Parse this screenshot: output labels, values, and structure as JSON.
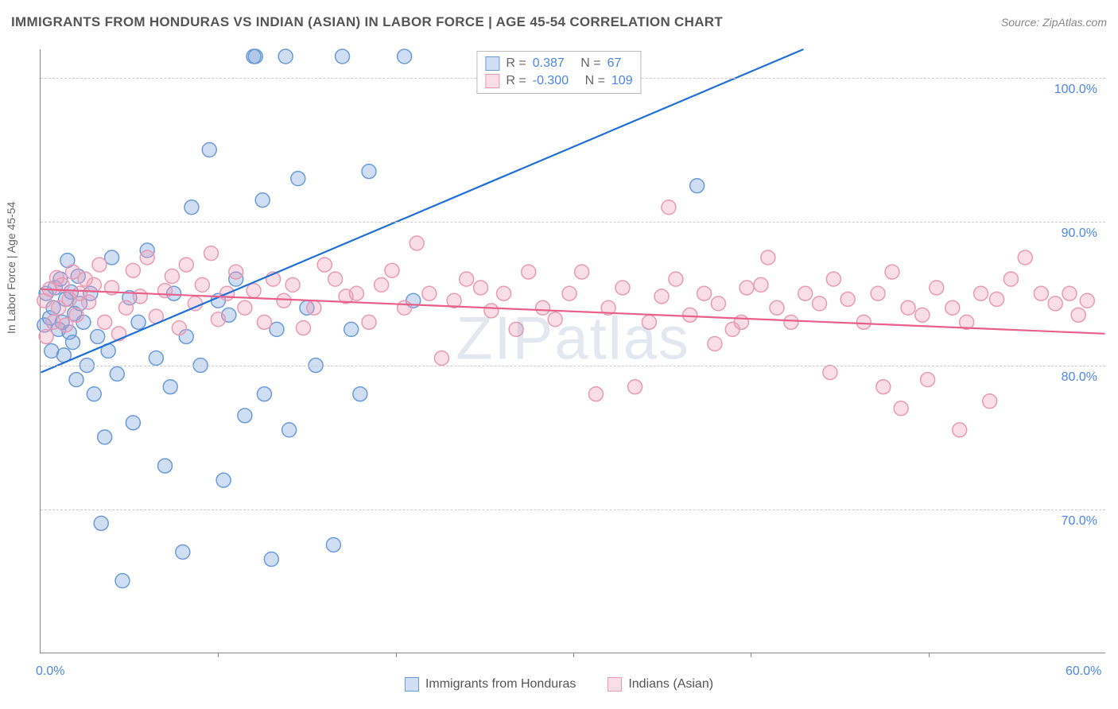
{
  "title": "IMMIGRANTS FROM HONDURAS VS INDIAN (ASIAN) IN LABOR FORCE | AGE 45-54 CORRELATION CHART",
  "source": "Source: ZipAtlas.com",
  "y_axis_label": "In Labor Force | Age 45-54",
  "watermark": "ZIPatlas",
  "chart": {
    "type": "scatter",
    "background_color": "#ffffff",
    "grid_color": "#cccccc",
    "axis_color": "#888888",
    "tick_label_color": "#4a86e8",
    "tick_fontsize": 16,
    "title_color": "#555555",
    "title_fontsize": 17,
    "xlim": [
      0,
      60
    ],
    "ylim": [
      60,
      102
    ],
    "y_ticks": [
      70,
      80,
      90,
      100
    ],
    "y_tick_labels": [
      "70.0%",
      "80.0%",
      "90.0%",
      "100.0%"
    ],
    "x_ticks": [
      0,
      10,
      20,
      30,
      40,
      50,
      60
    ],
    "x_tick_labels": [
      "0.0%",
      "",
      "",
      "",
      "",
      "",
      "60.0%"
    ],
    "marker_radius": 9,
    "marker_stroke_width": 1.5,
    "line_width": 2.2,
    "series": [
      {
        "name": "Immigrants from Honduras",
        "fill_color": "rgba(120,160,220,0.35)",
        "stroke_color": "#6a9bd8",
        "line_color": "#1f6fd6",
        "stats": {
          "R": "0.387",
          "N": "67"
        },
        "trend_line": {
          "x1": 0,
          "y1": 79.5,
          "x2": 43,
          "y2": 102
        },
        "points": [
          [
            0.2,
            82.8
          ],
          [
            0.3,
            85.0
          ],
          [
            0.5,
            83.3
          ],
          [
            0.6,
            81.0
          ],
          [
            0.7,
            84.0
          ],
          [
            0.8,
            85.4
          ],
          [
            1.0,
            82.5
          ],
          [
            1.1,
            86.0
          ],
          [
            1.2,
            83.0
          ],
          [
            1.3,
            80.7
          ],
          [
            1.4,
            84.6
          ],
          [
            1.5,
            87.3
          ],
          [
            1.6,
            82.3
          ],
          [
            1.7,
            85.1
          ],
          [
            1.8,
            81.6
          ],
          [
            1.9,
            83.6
          ],
          [
            2.0,
            79.0
          ],
          [
            2.1,
            86.2
          ],
          [
            2.2,
            84.3
          ],
          [
            2.4,
            83.0
          ],
          [
            2.6,
            80.0
          ],
          [
            2.8,
            85.0
          ],
          [
            3.0,
            78.0
          ],
          [
            3.2,
            82.0
          ],
          [
            3.4,
            69.0
          ],
          [
            3.6,
            75.0
          ],
          [
            3.8,
            81.0
          ],
          [
            4.0,
            87.5
          ],
          [
            4.3,
            79.4
          ],
          [
            4.6,
            65.0
          ],
          [
            5.0,
            84.7
          ],
          [
            5.2,
            76.0
          ],
          [
            5.5,
            83.0
          ],
          [
            6.0,
            88.0
          ],
          [
            6.5,
            80.5
          ],
          [
            7.0,
            73.0
          ],
          [
            7.3,
            78.5
          ],
          [
            7.5,
            85.0
          ],
          [
            8.0,
            67.0
          ],
          [
            8.2,
            82.0
          ],
          [
            8.5,
            91.0
          ],
          [
            9.0,
            80.0
          ],
          [
            9.5,
            95.0
          ],
          [
            10.0,
            84.5
          ],
          [
            10.3,
            72.0
          ],
          [
            10.6,
            83.5
          ],
          [
            11.0,
            86.0
          ],
          [
            11.5,
            76.5
          ],
          [
            12.0,
            101.5
          ],
          [
            12.1,
            101.5
          ],
          [
            12.5,
            91.5
          ],
          [
            12.6,
            78.0
          ],
          [
            13.0,
            66.5
          ],
          [
            13.3,
            82.5
          ],
          [
            13.8,
            101.5
          ],
          [
            14.0,
            75.5
          ],
          [
            14.5,
            93.0
          ],
          [
            15.0,
            84.0
          ],
          [
            15.5,
            80.0
          ],
          [
            16.5,
            67.5
          ],
          [
            17.0,
            101.5
          ],
          [
            17.5,
            82.5
          ],
          [
            18.0,
            78.0
          ],
          [
            18.5,
            93.5
          ],
          [
            20.5,
            101.5
          ],
          [
            21.0,
            84.5
          ],
          [
            37.0,
            92.5
          ]
        ]
      },
      {
        "name": "Indians (Asian)",
        "fill_color": "rgba(240,160,185,0.35)",
        "stroke_color": "#e89ab2",
        "line_color": "#e85f8a",
        "stats": {
          "R": "-0.300",
          "N": "109"
        },
        "trend_line": {
          "x1": 0,
          "y1": 85.3,
          "x2": 60,
          "y2": 82.2
        },
        "points": [
          [
            0.2,
            84.5
          ],
          [
            0.3,
            82.0
          ],
          [
            0.5,
            85.3
          ],
          [
            0.7,
            83.0
          ],
          [
            0.9,
            86.1
          ],
          [
            1.0,
            84.0
          ],
          [
            1.2,
            85.6
          ],
          [
            1.4,
            82.8
          ],
          [
            1.6,
            84.6
          ],
          [
            1.8,
            86.5
          ],
          [
            2.0,
            83.5
          ],
          [
            2.2,
            85.0
          ],
          [
            2.5,
            86.0
          ],
          [
            2.7,
            84.4
          ],
          [
            3.0,
            85.6
          ],
          [
            3.3,
            87.0
          ],
          [
            3.6,
            83.0
          ],
          [
            4.0,
            85.4
          ],
          [
            4.4,
            82.2
          ],
          [
            4.8,
            84.0
          ],
          [
            5.2,
            86.6
          ],
          [
            5.6,
            84.8
          ],
          [
            6.0,
            87.5
          ],
          [
            6.5,
            83.4
          ],
          [
            7.0,
            85.2
          ],
          [
            7.4,
            86.2
          ],
          [
            7.8,
            82.6
          ],
          [
            8.2,
            87.0
          ],
          [
            8.7,
            84.3
          ],
          [
            9.1,
            85.6
          ],
          [
            9.6,
            87.8
          ],
          [
            10.0,
            83.2
          ],
          [
            10.5,
            85.0
          ],
          [
            11.0,
            86.5
          ],
          [
            11.5,
            84.0
          ],
          [
            12.0,
            85.2
          ],
          [
            12.6,
            83.0
          ],
          [
            13.1,
            86.0
          ],
          [
            13.7,
            84.5
          ],
          [
            14.2,
            85.6
          ],
          [
            14.8,
            82.6
          ],
          [
            15.4,
            84.0
          ],
          [
            16.0,
            87.0
          ],
          [
            16.6,
            86.0
          ],
          [
            17.2,
            84.8
          ],
          [
            17.8,
            85.0
          ],
          [
            18.5,
            83.0
          ],
          [
            19.2,
            85.6
          ],
          [
            19.8,
            86.6
          ],
          [
            20.5,
            84.0
          ],
          [
            21.2,
            88.5
          ],
          [
            21.9,
            85.0
          ],
          [
            22.6,
            80.5
          ],
          [
            23.3,
            84.5
          ],
          [
            24.0,
            86.0
          ],
          [
            24.8,
            85.4
          ],
          [
            25.4,
            83.8
          ],
          [
            26.1,
            85.0
          ],
          [
            26.8,
            82.5
          ],
          [
            27.5,
            86.5
          ],
          [
            28.3,
            84.0
          ],
          [
            29.0,
            83.2
          ],
          [
            29.8,
            85.0
          ],
          [
            30.5,
            86.5
          ],
          [
            31.3,
            78.0
          ],
          [
            32.0,
            84.0
          ],
          [
            32.8,
            85.4
          ],
          [
            33.5,
            78.5
          ],
          [
            34.3,
            83.0
          ],
          [
            35.0,
            84.8
          ],
          [
            35.4,
            91.0
          ],
          [
            35.8,
            86.0
          ],
          [
            36.6,
            83.5
          ],
          [
            37.4,
            85.0
          ],
          [
            38.0,
            81.5
          ],
          [
            38.2,
            84.3
          ],
          [
            39.0,
            82.5
          ],
          [
            39.5,
            83.0
          ],
          [
            39.8,
            85.4
          ],
          [
            40.6,
            85.6
          ],
          [
            41.0,
            87.5
          ],
          [
            41.5,
            84.0
          ],
          [
            42.3,
            83.0
          ],
          [
            43.1,
            85.0
          ],
          [
            43.9,
            84.3
          ],
          [
            44.5,
            79.5
          ],
          [
            44.7,
            86.0
          ],
          [
            45.5,
            84.6
          ],
          [
            46.4,
            83.0
          ],
          [
            47.2,
            85.0
          ],
          [
            47.5,
            78.5
          ],
          [
            48.0,
            86.5
          ],
          [
            48.5,
            77.0
          ],
          [
            48.9,
            84.0
          ],
          [
            49.7,
            83.5
          ],
          [
            50.0,
            79.0
          ],
          [
            50.5,
            85.4
          ],
          [
            51.4,
            84.0
          ],
          [
            51.8,
            75.5
          ],
          [
            52.2,
            83.0
          ],
          [
            53.0,
            85.0
          ],
          [
            53.5,
            77.5
          ],
          [
            53.9,
            84.6
          ],
          [
            54.7,
            86.0
          ],
          [
            55.5,
            87.5
          ],
          [
            56.4,
            85.0
          ],
          [
            57.2,
            84.3
          ],
          [
            58.0,
            85.0
          ],
          [
            58.5,
            83.5
          ],
          [
            59.0,
            84.5
          ]
        ]
      }
    ]
  },
  "legend_top": {
    "r_label": "R =",
    "n_label": "N ="
  },
  "legend_bottom_labels": [
    "Immigrants from Honduras",
    "Indians (Asian)"
  ]
}
